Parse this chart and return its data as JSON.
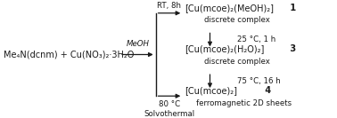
{
  "bg_color": "#ffffff",
  "reactant_text": "Me₄N(dcnm) + Cu(NO₃)₂·3H₂O",
  "meoh_label": "MeOH",
  "rt_label": "RT, 8h",
  "solvothermal_top_label": "80 °C",
  "solvothermal_bot_label": "Solvothermal",
  "product1_formula": "[Cu(mcoe)₂(MeOH)₂]",
  "product1_num": " 1",
  "product1_desc": "discrete complex",
  "arrow1_label": "25 °C, 1 h",
  "product3_formula": "[Cu(mcoe)₂(H₂O)₂]",
  "product3_num": " 3",
  "product3_desc": "discrete complex",
  "arrow2_label": "75 °C, 16 h",
  "product4_formula": "[Cu(mcoe)₂]",
  "product4_num": " 4",
  "product4_desc": "ferromagnetic 2D sheets",
  "text_color": "#1a1a1a",
  "font_size": 7.0,
  "font_size_small": 6.2
}
